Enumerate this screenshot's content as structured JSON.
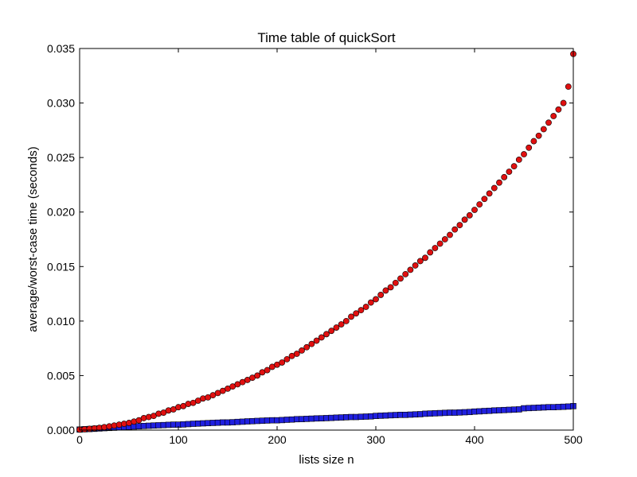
{
  "chart_data": {
    "type": "scatter",
    "title": "Time table of quickSort",
    "xlabel": "lists size n",
    "ylabel": "average/worst-case time (seconds)",
    "xlim": [
      0,
      500
    ],
    "ylim": [
      0,
      0.035
    ],
    "xticks": [
      0,
      100,
      200,
      300,
      400,
      500
    ],
    "xtick_labels": [
      "0",
      "100",
      "200",
      "300",
      "400",
      "500"
    ],
    "yticks": [
      0,
      0.005,
      0.01,
      0.015,
      0.02,
      0.025,
      0.03,
      0.035
    ],
    "ytick_labels": [
      "0.000",
      "0.005",
      "0.010",
      "0.015",
      "0.020",
      "0.025",
      "0.030",
      "0.035"
    ],
    "grid": false,
    "series": [
      {
        "marker": "square",
        "color": "#2020e0",
        "x": [
          0,
          5,
          10,
          15,
          20,
          25,
          30,
          35,
          40,
          45,
          50,
          55,
          60,
          65,
          70,
          75,
          80,
          85,
          90,
          95,
          100,
          105,
          110,
          115,
          120,
          125,
          130,
          135,
          140,
          145,
          150,
          155,
          160,
          165,
          170,
          175,
          180,
          185,
          190,
          195,
          200,
          205,
          210,
          215,
          220,
          225,
          230,
          235,
          240,
          245,
          250,
          255,
          260,
          265,
          270,
          275,
          280,
          285,
          290,
          295,
          300,
          305,
          310,
          315,
          320,
          325,
          330,
          335,
          340,
          345,
          350,
          355,
          360,
          365,
          370,
          375,
          380,
          385,
          390,
          395,
          400,
          405,
          410,
          415,
          420,
          425,
          430,
          435,
          440,
          445,
          450,
          455,
          460,
          465,
          470,
          475,
          480,
          485,
          490,
          495,
          500
        ],
        "y": [
          5e-05,
          8e-05,
          0.0001,
          0.00012,
          0.00015,
          0.00018,
          0.0002,
          0.00022,
          0.00025,
          0.00028,
          0.0003,
          0.00033,
          0.00035,
          0.00038,
          0.0004,
          0.00042,
          0.00044,
          0.00046,
          0.00048,
          0.0005,
          0.0005,
          0.00052,
          0.00055,
          0.00058,
          0.0006,
          0.00062,
          0.00064,
          0.00066,
          0.00068,
          0.0007,
          0.0007,
          0.00072,
          0.00075,
          0.00077,
          0.0008,
          0.00082,
          0.00084,
          0.00086,
          0.00088,
          0.0009,
          0.0009,
          0.00092,
          0.00095,
          0.00097,
          0.001,
          0.00101,
          0.00103,
          0.00105,
          0.00107,
          0.00108,
          0.0011,
          0.00112,
          0.00114,
          0.00116,
          0.00118,
          0.0012,
          0.0012,
          0.00122,
          0.00124,
          0.00126,
          0.0013,
          0.00132,
          0.00134,
          0.00136,
          0.00138,
          0.0014,
          0.0014,
          0.00142,
          0.00144,
          0.00146,
          0.0015,
          0.00152,
          0.00154,
          0.00156,
          0.00158,
          0.0016,
          0.0016,
          0.00162,
          0.00164,
          0.00166,
          0.0017,
          0.00172,
          0.00175,
          0.00177,
          0.0018,
          0.00182,
          0.00184,
          0.00186,
          0.00188,
          0.0019,
          0.002,
          0.00202,
          0.00204,
          0.00206,
          0.00208,
          0.0021,
          0.0021,
          0.00212,
          0.00214,
          0.00216,
          0.0022
        ]
      },
      {
        "marker": "circle",
        "color": "#e01010",
        "x": [
          0,
          5,
          10,
          15,
          20,
          25,
          30,
          35,
          40,
          45,
          50,
          55,
          60,
          65,
          70,
          75,
          80,
          85,
          90,
          95,
          100,
          105,
          110,
          115,
          120,
          125,
          130,
          135,
          140,
          145,
          150,
          155,
          160,
          165,
          170,
          175,
          180,
          185,
          190,
          195,
          200,
          205,
          210,
          215,
          220,
          225,
          230,
          235,
          240,
          245,
          250,
          255,
          260,
          265,
          270,
          275,
          280,
          285,
          290,
          295,
          300,
          305,
          310,
          315,
          320,
          325,
          330,
          335,
          340,
          345,
          350,
          355,
          360,
          365,
          370,
          375,
          380,
          385,
          390,
          395,
          400,
          405,
          410,
          415,
          420,
          425,
          430,
          435,
          440,
          445,
          450,
          455,
          460,
          465,
          470,
          475,
          480,
          485,
          490,
          495,
          500
        ],
        "y": [
          5e-05,
          8e-05,
          0.00012,
          0.00016,
          0.00021,
          0.00027,
          0.00034,
          0.00042,
          0.0005,
          0.00058,
          0.00066,
          0.00078,
          0.0009,
          0.0011,
          0.0012,
          0.0013,
          0.0015,
          0.0016,
          0.0018,
          0.0019,
          0.0021,
          0.0022,
          0.0024,
          0.0025,
          0.0027,
          0.0029,
          0.003,
          0.0032,
          0.0034,
          0.0036,
          0.0038,
          0.004,
          0.0042,
          0.0044,
          0.0046,
          0.0048,
          0.005,
          0.0053,
          0.0055,
          0.0058,
          0.006,
          0.0062,
          0.0065,
          0.0068,
          0.007,
          0.0073,
          0.0076,
          0.0079,
          0.0082,
          0.0085,
          0.0088,
          0.0091,
          0.0094,
          0.0097,
          0.01,
          0.0104,
          0.0107,
          0.011,
          0.0113,
          0.0117,
          0.012,
          0.0124,
          0.0128,
          0.0131,
          0.0135,
          0.0139,
          0.0143,
          0.0147,
          0.0151,
          0.0155,
          0.0158,
          0.0163,
          0.0167,
          0.0171,
          0.0175,
          0.0179,
          0.0184,
          0.0188,
          0.0193,
          0.0197,
          0.0202,
          0.0207,
          0.0212,
          0.0217,
          0.0222,
          0.0227,
          0.0232,
          0.0237,
          0.0242,
          0.0248,
          0.0253,
          0.0259,
          0.0265,
          0.027,
          0.0276,
          0.0282,
          0.0288,
          0.0294,
          0.03,
          0.0315,
          0.0345
        ]
      }
    ]
  }
}
